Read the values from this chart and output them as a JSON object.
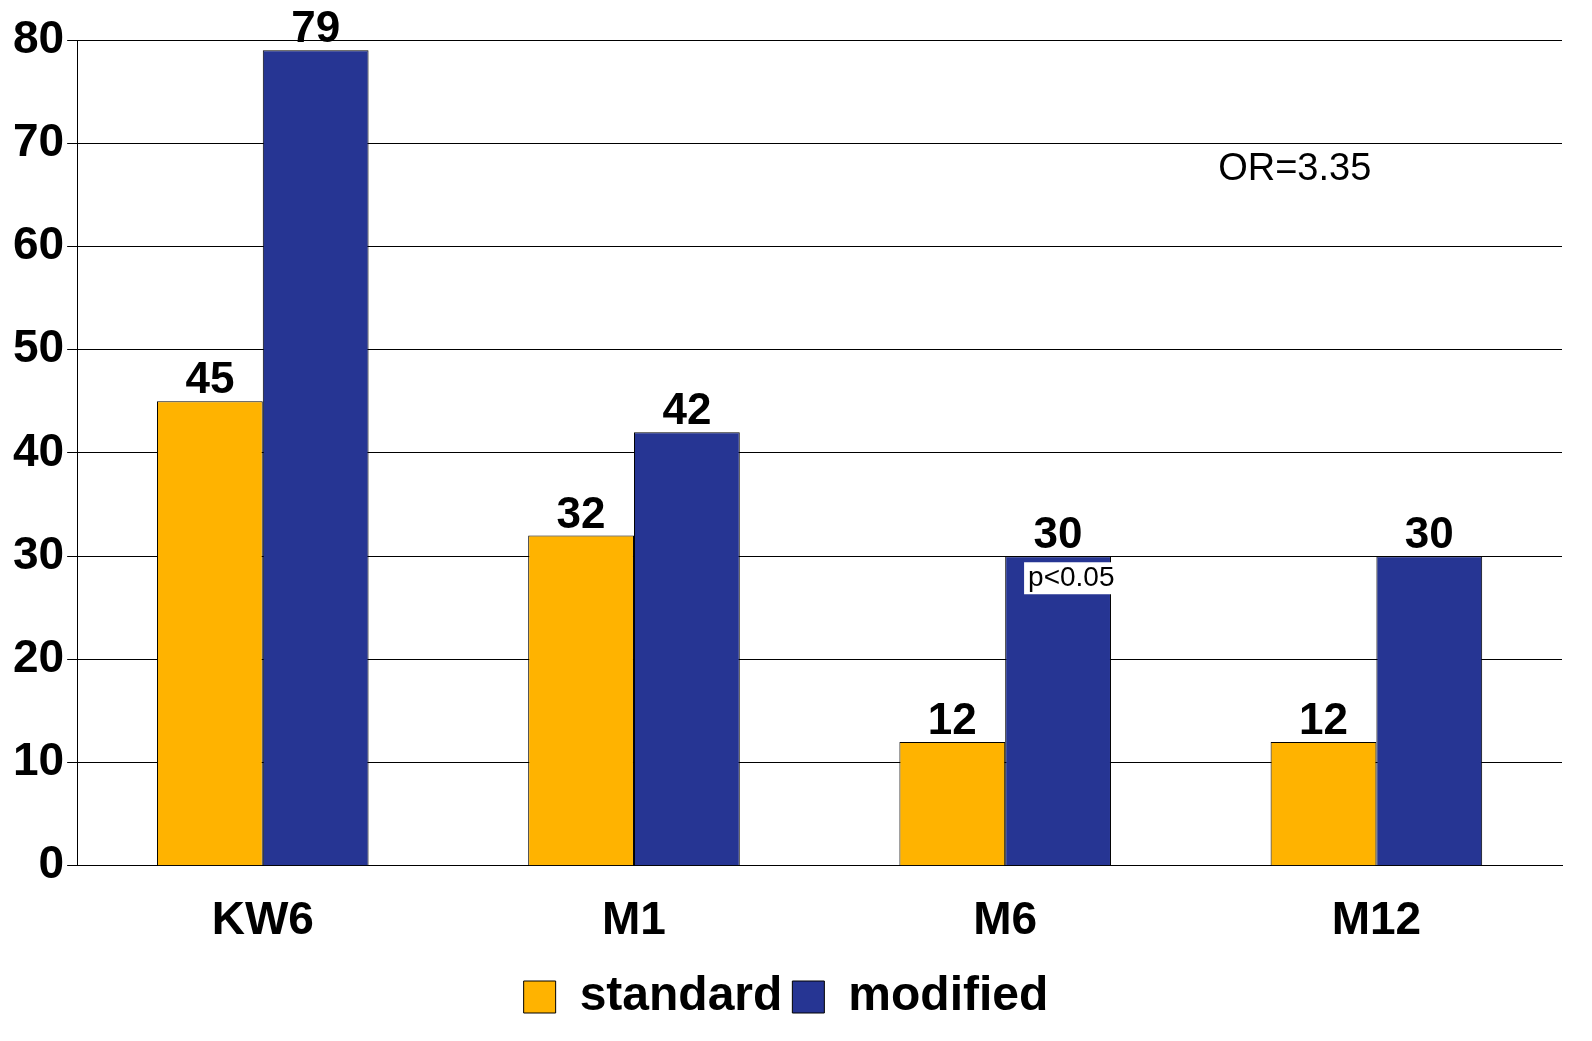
{
  "chart_data": {
    "type": "bar",
    "categories": [
      "KW6",
      "M1",
      "M6",
      "M12"
    ],
    "series": [
      {
        "name": "standard",
        "color": "#ffb300",
        "values": [
          45,
          32,
          12,
          12
        ]
      },
      {
        "name": "modified",
        "color": "#263593",
        "values": [
          79,
          42,
          30,
          30
        ]
      }
    ],
    "ylim": [
      0,
      80
    ],
    "yticks": [
      0,
      10,
      20,
      30,
      40,
      50,
      60,
      70,
      80
    ],
    "grid": "y",
    "legend": "bottom",
    "data_labels": true,
    "annotations": [
      "OR=3.35",
      "p<0.05"
    ]
  }
}
